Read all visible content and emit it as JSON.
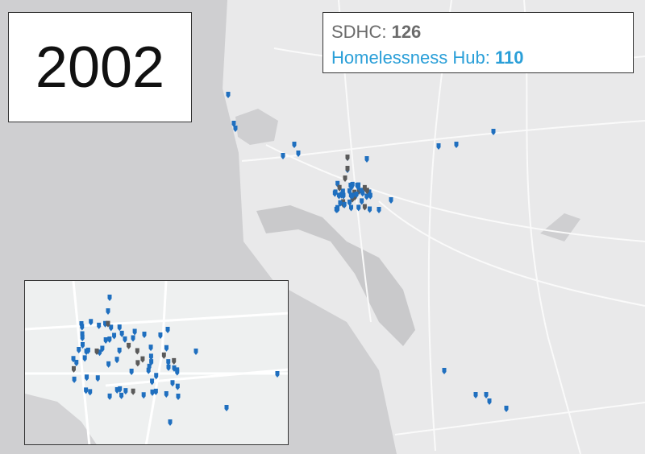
{
  "year_box": {
    "year": "2002"
  },
  "legend": {
    "items": [
      {
        "label": "SDHC:",
        "count": 126
      },
      {
        "label": "Homelessness Hub:",
        "count": 110
      }
    ]
  }
}
